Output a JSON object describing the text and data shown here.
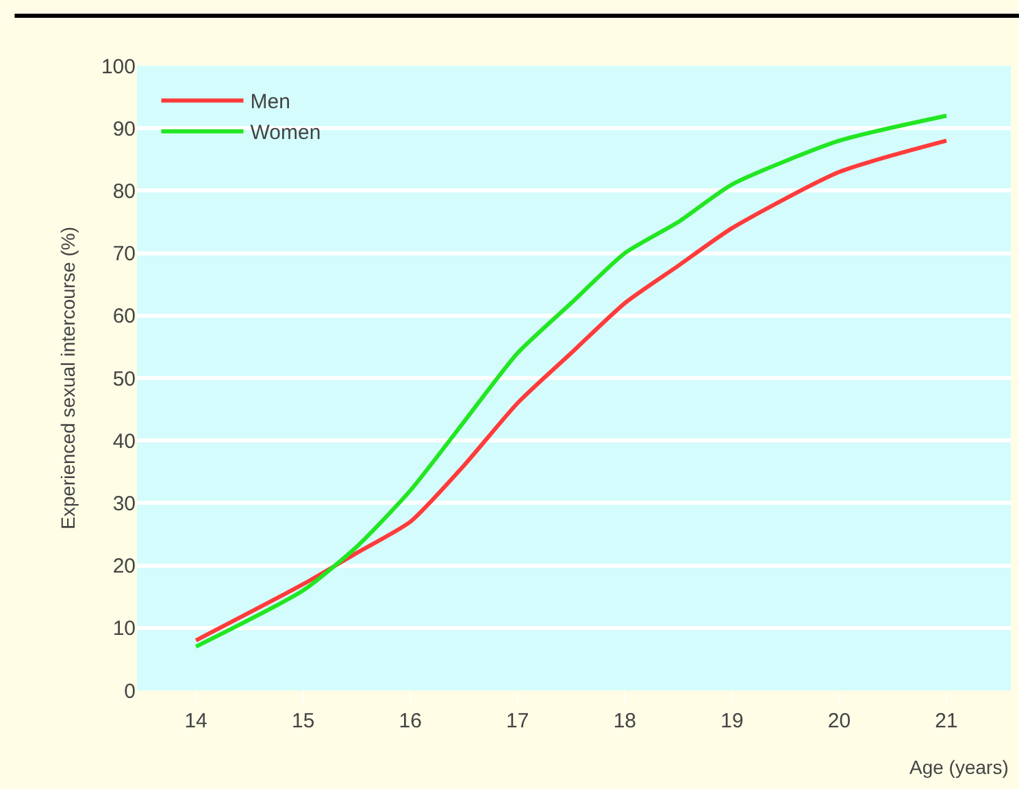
{
  "chart_data": {
    "type": "line",
    "xlabel": "Age (years)",
    "ylabel": "Experienced sexual intercourse (%)",
    "xlim": [
      13.45,
      21.6
    ],
    "xticks": [
      14,
      15,
      16,
      17,
      18,
      19,
      20,
      21
    ],
    "ylim": [
      0,
      100
    ],
    "yticks": [
      0,
      10,
      20,
      30,
      40,
      50,
      60,
      70,
      80,
      90,
      100
    ],
    "grid": "y",
    "legend": "top left",
    "marker": "none",
    "line_style": "solid",
    "series": [
      {
        "name": "Men",
        "color": "#ff3b3b",
        "x": [
          14,
          15,
          15.5,
          16,
          16.5,
          17,
          17.5,
          18,
          18.5,
          19,
          20,
          21
        ],
        "values": [
          8,
          17,
          22,
          27,
          36,
          46,
          54,
          62,
          68,
          74,
          83,
          88
        ]
      },
      {
        "name": "Women",
        "color": "#22e622",
        "x": [
          14,
          15,
          15.5,
          16,
          16.5,
          17,
          17.5,
          18,
          18.5,
          19,
          20,
          21
        ],
        "values": [
          7,
          16,
          23,
          32,
          43,
          54,
          62,
          70,
          75,
          81,
          88,
          92
        ]
      }
    ]
  }
}
